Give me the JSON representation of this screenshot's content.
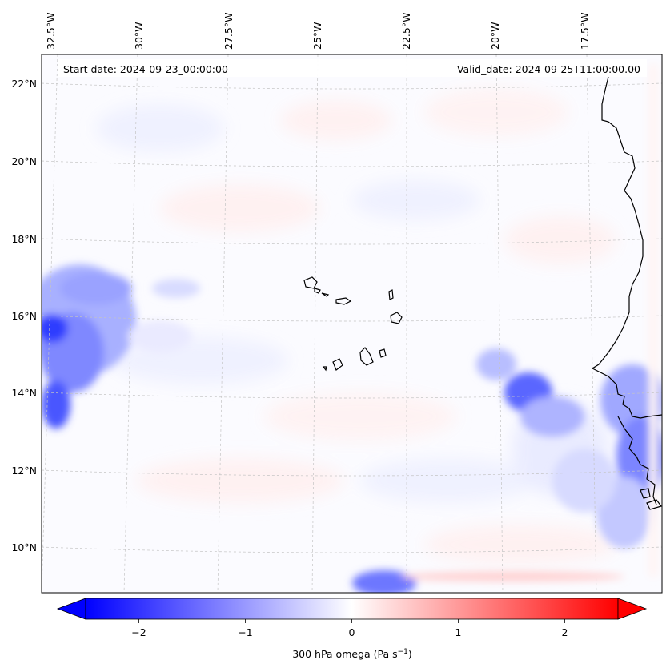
{
  "map": {
    "start_date": "Start date: 2024-09-23_00:00:00",
    "valid_date": "Valid_date: 2024-09-25T11:00:00.00",
    "lon_labels": [
      "32.5°W",
      "30°W",
      "27.5°W",
      "25°W",
      "22.5°W",
      "20°W",
      "17.5°W"
    ],
    "lat_labels": [
      "22°N",
      "20°N",
      "18°N",
      "16°N",
      "14°N",
      "12°N",
      "10°N"
    ],
    "colorbar": {
      "tick_labels": [
        "−2",
        "−1",
        "0",
        "1",
        "2"
      ],
      "tick_values": [
        -2,
        -1,
        0,
        1,
        2
      ],
      "min": -2.5,
      "max": 2.5,
      "label_main": "300 hPa omega (Pa s",
      "label_sup": "−1",
      "label_end": ")",
      "negative_color": "#0000ff",
      "positive_color": "#ff0000",
      "neutral_color": "#ffffff"
    },
    "coastline_color": "#000000",
    "gridline_color": "#bbbbbb"
  }
}
